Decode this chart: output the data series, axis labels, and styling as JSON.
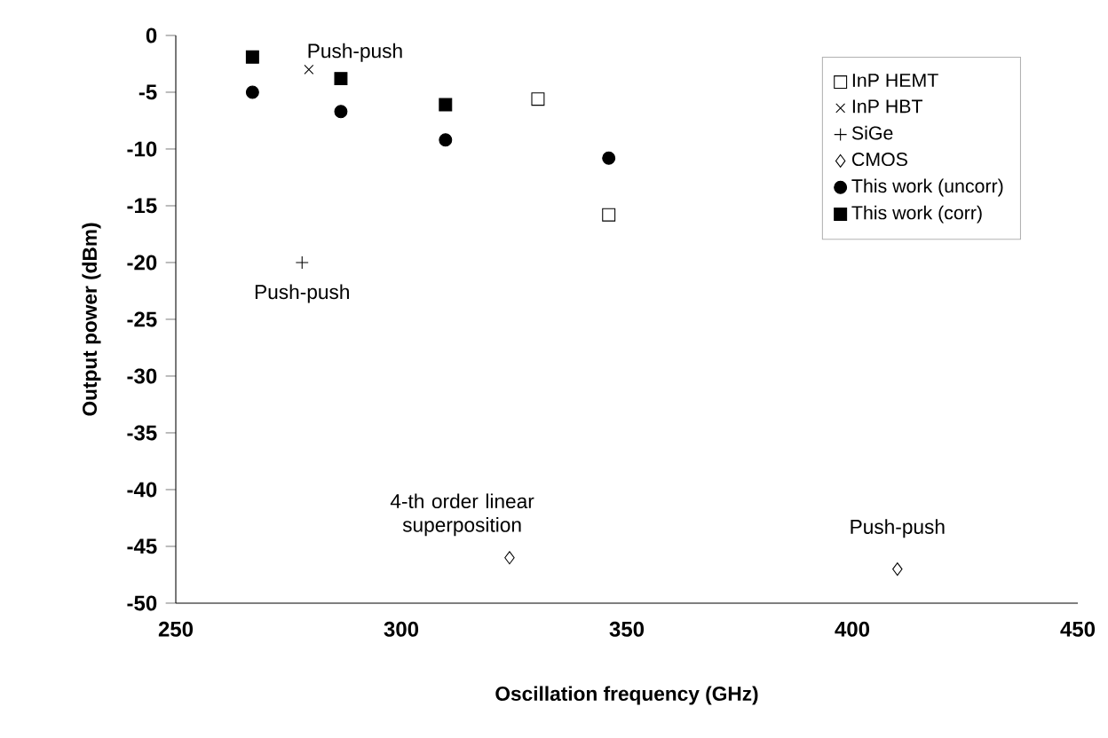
{
  "chart_data": {
    "type": "scatter",
    "xlabel": "Oscillation frequency (GHz)",
    "ylabel": "Output power (dBm)",
    "xlim": [
      250,
      450
    ],
    "xticks": [
      250,
      300,
      350,
      400,
      450
    ],
    "ylim": [
      -50,
      0
    ],
    "yticks": [
      0,
      -5,
      -10,
      -15,
      -20,
      -25,
      -30,
      -35,
      -40,
      -45,
      -50
    ],
    "legend": "top right",
    "series": [
      {
        "name": "InP HEMT",
        "color": "#ffffff",
        "marker": "square",
        "x": [
          330.3,
          346
        ],
        "values": [
          -5.6,
          -15.8
        ]
      },
      {
        "name": "InP HBT",
        "color": "#000000",
        "marker": "cross",
        "x": [
          279.5
        ],
        "values": [
          -3
        ]
      },
      {
        "name": "SiGe",
        "color": "#000000",
        "marker": "plus",
        "x": [
          278
        ],
        "values": [
          -20
        ]
      },
      {
        "name": "CMOS",
        "color": "#ffffff",
        "marker": "diamond",
        "x": [
          324,
          410
        ],
        "values": [
          -46,
          -47
        ]
      },
      {
        "name": "This work (uncorr)",
        "color": "#000000",
        "marker": "circle",
        "x": [
          267,
          286.6,
          309.8,
          346
        ],
        "values": [
          -5,
          -6.7,
          -9.2,
          -10.8
        ]
      },
      {
        "name": "This work (corr)",
        "color": "#000000",
        "marker": "square",
        "x": [
          267,
          286.6,
          309.8
        ],
        "values": [
          -1.9,
          -3.8,
          -6.1
        ]
      }
    ],
    "annotations": [
      {
        "text": "Push-push",
        "x": 279.5,
        "y": -3
      },
      {
        "text": "Push-push",
        "x": 278,
        "y": -20
      },
      {
        "text": "4-th order linear superposition",
        "x": 324,
        "y": -46
      },
      {
        "text": "Push-push",
        "x": 410,
        "y": -47
      }
    ]
  }
}
